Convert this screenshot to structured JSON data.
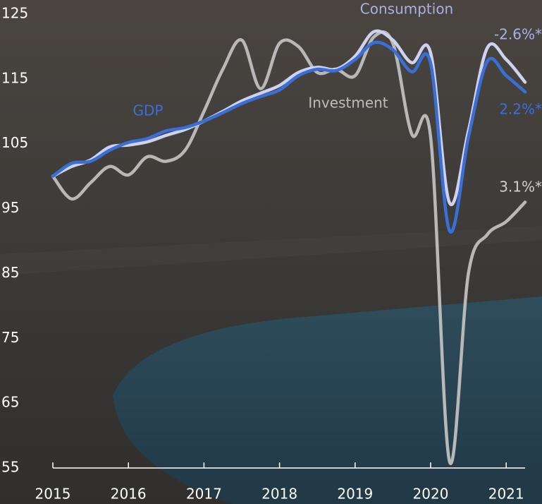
{
  "chart_data": {
    "type": "line",
    "x": [
      2015,
      2015.25,
      2015.5,
      2015.75,
      2016,
      2016.25,
      2016.5,
      2016.75,
      2017,
      2017.25,
      2017.5,
      2017.75,
      2018,
      2018.25,
      2018.5,
      2018.75,
      2019,
      2019.25,
      2019.5,
      2019.75,
      2020,
      2020.25,
      2020.5,
      2020.75,
      2021,
      2021.25
    ],
    "series": [
      {
        "name": "Investment",
        "color": "#b8b8b8",
        "values": [
          100,
          96.5,
          99,
          101.5,
          100.2,
          103,
          102.3,
          104,
          110,
          116.5,
          121,
          113.5,
          120.5,
          120,
          116,
          116.5,
          115.5,
          121.5,
          120.5,
          106.5,
          106,
          56,
          85,
          91,
          93,
          96
        ]
      },
      {
        "name": "Consumption",
        "color": "#cfd2ee",
        "values": [
          100,
          101.5,
          102.5,
          104.5,
          104.8,
          105.3,
          106.3,
          107.2,
          108.5,
          110,
          111.6,
          112.8,
          114,
          116,
          116.8,
          116.5,
          118.5,
          122.3,
          121,
          117.5,
          119,
          95.9,
          107,
          119.8,
          118,
          114.5
        ]
      },
      {
        "name": "GDP",
        "color": "#3a6fd8",
        "values": [
          100,
          102,
          102.3,
          104,
          105.2,
          105.8,
          107,
          107.5,
          108.5,
          109.8,
          111.2,
          112.3,
          113.3,
          115.5,
          116.5,
          116.3,
          118,
          120.6,
          119.5,
          116.1,
          117.4,
          91.6,
          106,
          117.7,
          115.5,
          113
        ]
      }
    ],
    "annotations": [
      "Consumption",
      "GDP",
      "Investment",
      "-2.6%*",
      "2.2%*",
      "3.1%*"
    ],
    "xlim": [
      2015,
      2021.25
    ],
    "xticks": [
      2015,
      2016,
      2017,
      2018,
      2019,
      2020,
      2021
    ],
    "ylim": [
      55,
      125
    ],
    "yticks": [
      55,
      65,
      75,
      85,
      95,
      105,
      115,
      125
    ]
  }
}
